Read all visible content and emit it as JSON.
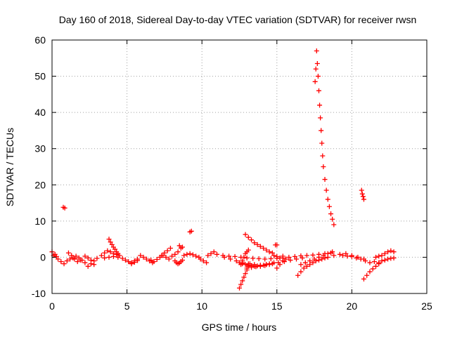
{
  "chart_data": {
    "type": "scatter",
    "title": "Day 160 of 2018, Sidereal Day-to-day VTEC variation (SDTVAR) for receiver rwsn",
    "xlabel": "GPS time / hours",
    "ylabel": "SDTVAR / TECUs",
    "xlim": [
      0,
      25
    ],
    "ylim": [
      -10,
      60
    ],
    "xticks": [
      0,
      5,
      10,
      15,
      20,
      25
    ],
    "yticks": [
      -10,
      0,
      10,
      20,
      30,
      40,
      50,
      60
    ],
    "grid": true,
    "marker": "+",
    "color": "#ff0000",
    "series": [
      {
        "name": "SDTVAR",
        "segments": [
          {
            "x": [
              0.0,
              0.1,
              0.2,
              0.3
            ],
            "y": [
              1.5,
              0.5,
              0.8,
              0.2
            ]
          },
          {
            "x": [
              0.4,
              0.6,
              0.8,
              1.0,
              1.2,
              1.4,
              1.6
            ],
            "y": [
              -0.5,
              -1.2,
              -1.8,
              -1.0,
              -0.5,
              -0.2,
              0.3
            ]
          },
          {
            "x": [
              0.75,
              0.85
            ],
            "y": [
              13.8,
              13.6
            ]
          },
          {
            "x": [
              1.1,
              1.3,
              1.5,
              1.7,
              1.9
            ],
            "y": [
              1.2,
              0.5,
              -0.5,
              -1.2,
              -0.8
            ]
          },
          {
            "x": [
              1.8,
              2.0,
              2.2,
              2.4,
              2.6,
              2.8,
              3.0
            ],
            "y": [
              -0.2,
              -0.8,
              -1.5,
              -2.5,
              -1.8,
              -1.0,
              -0.3
            ]
          },
          {
            "x": [
              2.2,
              2.4,
              2.6,
              2.8
            ],
            "y": [
              0.3,
              -0.2,
              -0.8,
              -2.0
            ]
          },
          {
            "x": [
              3.3,
              3.5,
              3.7,
              3.9,
              4.1,
              4.3,
              4.5
            ],
            "y": [
              0.5,
              1.2,
              1.8,
              1.5,
              1.0,
              0.8,
              0.5
            ]
          },
          {
            "x": [
              3.8,
              3.9,
              4.0,
              4.1,
              4.2,
              4.3,
              4.4
            ],
            "y": [
              5.0,
              4.2,
              3.5,
              2.8,
              2.2,
              1.5,
              1.0
            ]
          },
          {
            "x": [
              3.5,
              3.8,
              4.1,
              4.4,
              4.7
            ],
            "y": [
              -0.2,
              0.0,
              0.2,
              0.0,
              -0.3
            ]
          },
          {
            "x": [
              4.9,
              5.1,
              5.3,
              5.5,
              5.7
            ],
            "y": [
              -0.8,
              -1.2,
              -1.5,
              -1.0,
              -0.5
            ]
          },
          {
            "x": [
              5.3,
              5.5,
              5.7
            ],
            "y": [
              -1.8,
              -1.4,
              -0.9
            ]
          },
          {
            "x": [
              5.9,
              6.1,
              6.3,
              6.5,
              6.7
            ],
            "y": [
              0.5,
              0.0,
              -0.5,
              -1.0,
              -1.5
            ]
          },
          {
            "x": [
              6.6,
              6.8,
              7.0,
              7.2,
              7.4
            ],
            "y": [
              -0.8,
              -1.2,
              -0.6,
              0.0,
              0.5
            ]
          },
          {
            "x": [
              7.3,
              7.5,
              7.7,
              7.9
            ],
            "y": [
              0.5,
              1.2,
              1.8,
              2.5
            ]
          },
          {
            "x": [
              7.6,
              7.8,
              8.0
            ],
            "y": [
              0.0,
              -0.5,
              0.3
            ]
          },
          {
            "x": [
              8.2,
              8.4,
              8.6
            ],
            "y": [
              0.8,
              1.5,
              2.5
            ]
          },
          {
            "x": [
              8.5,
              8.7
            ],
            "y": [
              3.2,
              2.8
            ]
          },
          {
            "x": [
              8.2,
              8.3,
              8.4,
              8.5,
              8.6,
              8.7
            ],
            "y": [
              -1.0,
              -1.5,
              -1.8,
              -1.6,
              -1.2,
              -0.8
            ]
          },
          {
            "x": [
              8.8,
              9.0,
              9.2,
              9.4,
              9.6,
              9.8
            ],
            "y": [
              0.5,
              0.8,
              1.0,
              0.7,
              0.3,
              0.0
            ]
          },
          {
            "x": [
              9.2,
              9.3
            ],
            "y": [
              7.0,
              7.2
            ]
          },
          {
            "x": [
              9.9,
              10.1,
              10.3
            ],
            "y": [
              -0.5,
              -1.0,
              -1.5
            ]
          },
          {
            "x": [
              10.4,
              10.6,
              10.8
            ],
            "y": [
              0.5,
              1.0,
              1.5
            ]
          },
          {
            "x": [
              11.0,
              11.4,
              11.8,
              12.2,
              12.6,
              13.0,
              13.4,
              13.8,
              14.2,
              14.6,
              15.0,
              15.4,
              15.8,
              16.2,
              16.6,
              17.0,
              17.4,
              17.8,
              18.2,
              18.6
            ],
            "y": [
              0.8,
              0.5,
              0.3,
              0.2,
              0.0,
              -0.2,
              -0.3,
              -0.4,
              -0.5,
              -0.4,
              -0.3,
              -0.2,
              0.0,
              0.2,
              0.4,
              0.5,
              0.6,
              0.8,
              1.0,
              1.2
            ]
          },
          {
            "x": [
              11.5,
              11.9,
              12.3,
              12.7,
              13.1,
              13.5,
              13.9,
              14.3,
              14.7,
              15.1,
              15.5,
              15.9,
              16.3,
              16.7
            ],
            "y": [
              0.0,
              -0.5,
              -1.0,
              -1.5,
              -1.8,
              -2.0,
              -2.2,
              -2.0,
              -1.8,
              -1.5,
              -1.2,
              -0.8,
              -0.5,
              -0.2
            ]
          },
          {
            "x": [
              12.5,
              12.7,
              12.9,
              13.1,
              13.3,
              13.5,
              13.7,
              13.9,
              14.1,
              14.3,
              14.5
            ],
            "y": [
              -1.5,
              -1.8,
              -2.0,
              -2.2,
              -2.3,
              -2.5,
              -2.4,
              -2.3,
              -2.2,
              -2.0,
              -1.8
            ]
          },
          {
            "x": [
              12.5,
              12.6,
              12.7,
              12.8,
              12.9,
              13.0,
              13.1,
              13.2
            ],
            "y": [
              -8.5,
              -7.5,
              -6.5,
              -5.5,
              -4.5,
              -3.5,
              -2.5,
              -1.8
            ]
          },
          {
            "x": [
              12.6,
              12.7,
              12.8,
              12.9,
              13.0,
              13.1
            ],
            "y": [
              -2.0,
              -1.0,
              0.0,
              1.0,
              1.5,
              2.0
            ]
          },
          {
            "x": [
              12.9,
              13.1,
              13.3,
              13.5,
              13.7,
              13.9,
              14.1,
              14.3,
              14.5,
              14.7
            ],
            "y": [
              6.3,
              5.5,
              4.8,
              4.0,
              3.5,
              3.0,
              2.5,
              2.0,
              1.5,
              1.2
            ]
          },
          {
            "x": [
              13.0,
              13.3,
              13.6,
              13.9,
              14.2,
              14.5,
              14.8
            ],
            "y": [
              -3.0,
              -2.8,
              -2.6,
              -2.5,
              -2.3,
              -2.0,
              -1.5
            ]
          },
          {
            "x": [
              14.8,
              15.0,
              15.2,
              15.4
            ],
            "y": [
              0.5,
              0.2,
              -0.2,
              0.3
            ]
          },
          {
            "x": [
              14.9,
              15.0
            ],
            "y": [
              3.4,
              3.4
            ]
          },
          {
            "x": [
              15.0,
              15.2,
              15.4,
              15.6
            ],
            "y": [
              -3.0,
              -2.0,
              -1.0,
              -0.5
            ]
          },
          {
            "x": [
              16.4,
              16.6,
              16.8,
              17.0,
              17.2,
              17.4,
              17.6,
              17.8,
              18.0,
              18.2,
              18.4
            ],
            "y": [
              -5.0,
              -4.0,
              -3.0,
              -2.5,
              -2.0,
              -1.5,
              -1.0,
              -0.8,
              -0.5,
              -0.2,
              0.0
            ]
          },
          {
            "x": [
              16.6,
              16.9,
              17.2,
              17.5,
              17.8,
              18.1,
              18.4,
              18.7
            ],
            "y": [
              -2.0,
              -1.5,
              -1.0,
              -0.5,
              0.0,
              0.5,
              1.0,
              1.5
            ]
          },
          {
            "x": [
              17.55,
              17.6,
              17.65,
              17.7,
              17.75,
              17.8,
              17.85,
              17.9,
              17.95,
              18.0,
              18.05,
              18.1,
              18.2,
              18.3,
              18.4,
              18.5,
              18.6,
              18.7,
              18.8
            ],
            "y": [
              48.5,
              52.0,
              57.0,
              53.5,
              50.0,
              46.0,
              42.0,
              38.5,
              35.0,
              31.5,
              28.0,
              25.0,
              21.5,
              18.5,
              16.0,
              14.0,
              12.0,
              10.5,
              9.0
            ]
          },
          {
            "x": [
              18.8,
              19.2,
              19.6,
              20.0,
              20.4,
              20.8
            ],
            "y": [
              0.5,
              0.8,
              1.0,
              0.5,
              0.0,
              -0.5
            ]
          },
          {
            "x": [
              19.4,
              19.7,
              20.0,
              20.3,
              20.6,
              20.9,
              21.2,
              21.5
            ],
            "y": [
              0.5,
              0.3,
              0.2,
              -0.2,
              -0.5,
              -1.0,
              -1.5,
              -1.2
            ]
          },
          {
            "x": [
              20.65,
              20.7,
              20.75,
              20.8
            ],
            "y": [
              18.5,
              17.5,
              16.8,
              16.0
            ]
          },
          {
            "x": [
              20.8,
              21.0,
              21.2,
              21.4,
              21.6,
              21.8
            ],
            "y": [
              -6.0,
              -5.0,
              -4.0,
              -3.2,
              -2.5,
              -1.8
            ]
          },
          {
            "x": [
              21.6,
              21.8,
              22.0,
              22.2,
              22.4,
              22.6,
              22.8
            ],
            "y": [
              0.0,
              0.3,
              0.5,
              1.0,
              1.5,
              1.8,
              1.5
            ]
          },
          {
            "x": [
              21.8,
              22.0,
              22.2,
              22.4,
              22.6,
              22.8
            ],
            "y": [
              -1.5,
              -1.0,
              -0.8,
              -0.5,
              -0.3,
              -0.2
            ]
          }
        ]
      }
    ]
  }
}
